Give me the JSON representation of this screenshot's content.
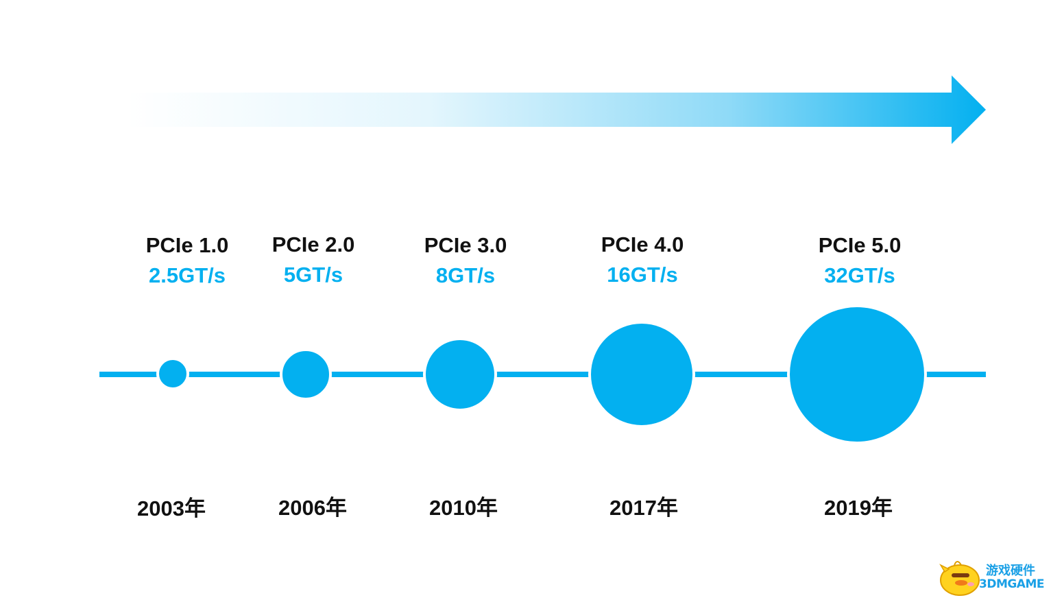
{
  "colors": {
    "accent": "#03b0f0",
    "text": "#111111",
    "arrow_start": "#ffffff",
    "arrow_end": "#03b0f0"
  },
  "milestones": [
    {
      "version": "PCIe 1.0",
      "speed": "2.5GT/s",
      "year": "2003年",
      "rate_gt_s": 2.5
    },
    {
      "version": "PCIe 2.0",
      "speed": "5GT/s",
      "year": "2006年",
      "rate_gt_s": 5
    },
    {
      "version": "PCIe 3.0",
      "speed": "8GT/s",
      "year": "2010年",
      "rate_gt_s": 8
    },
    {
      "version": "PCIe 4.0",
      "speed": "16GT/s",
      "year": "2017年",
      "rate_gt_s": 16
    },
    {
      "version": "PCIe 5.0",
      "speed": "32GT/s",
      "year": "2019年",
      "rate_gt_s": 32
    }
  ],
  "watermark": {
    "line1": "游戏硬件",
    "line2": "3DMGAME"
  }
}
